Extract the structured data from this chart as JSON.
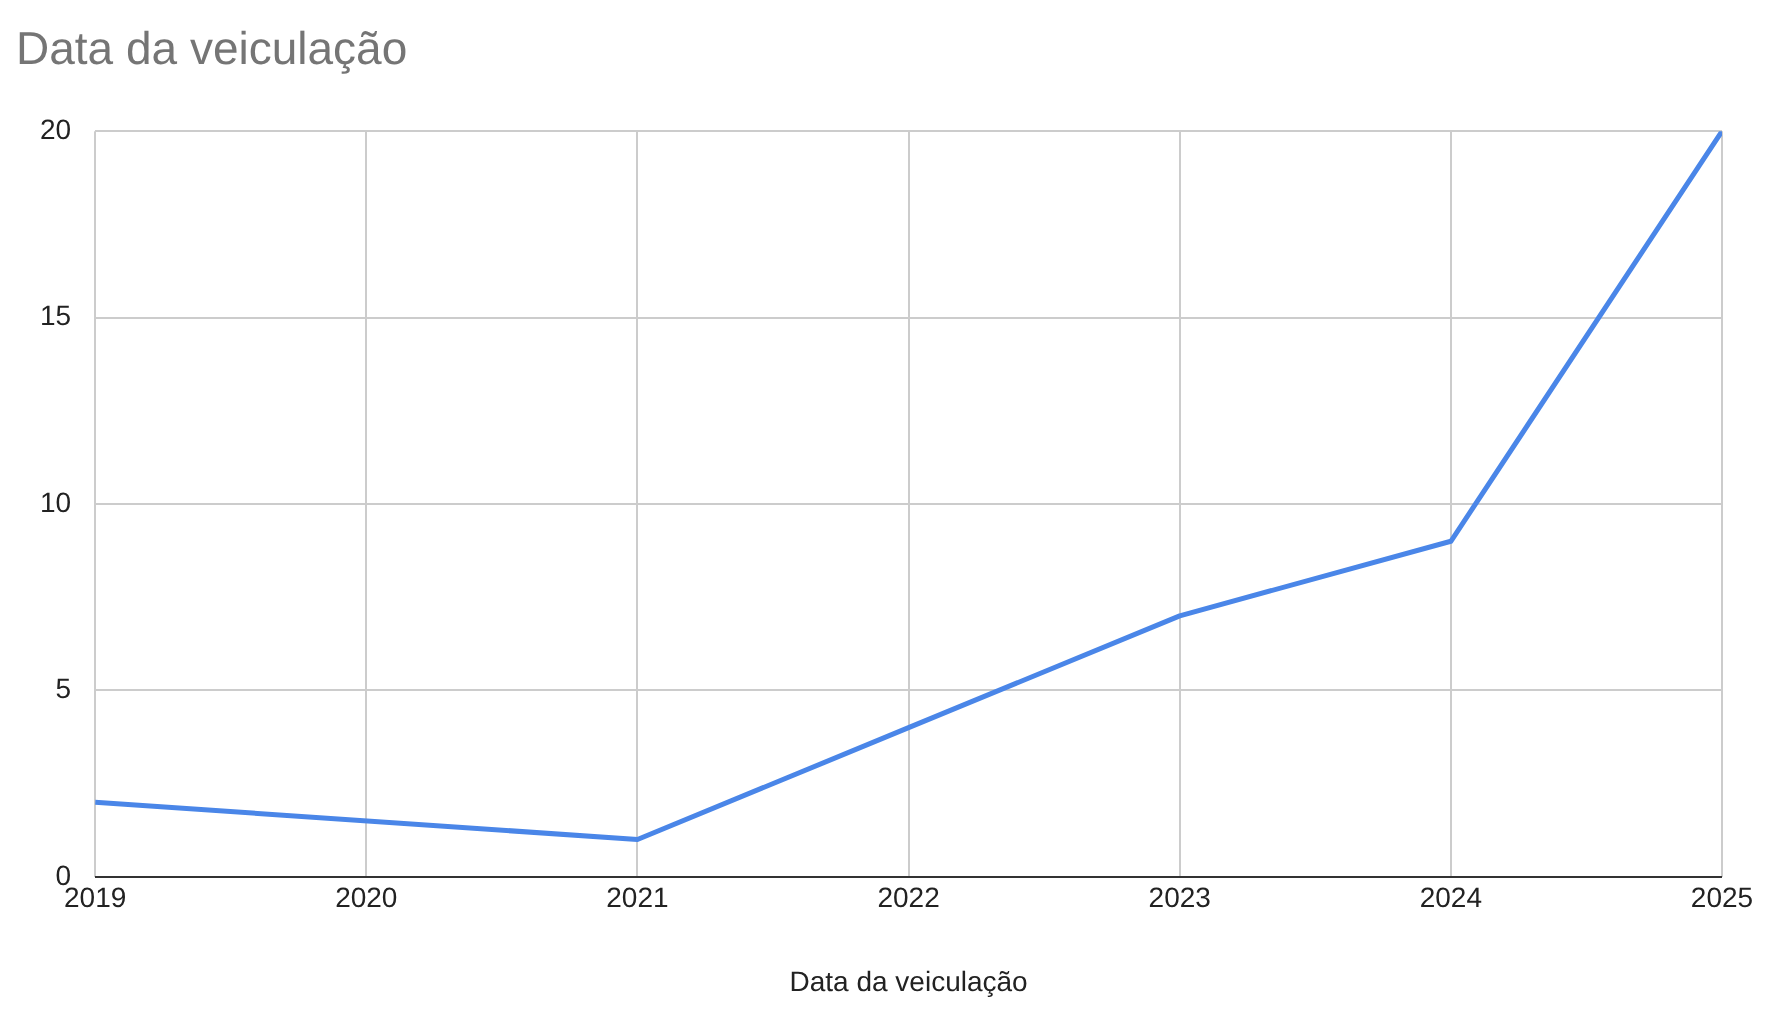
{
  "chart_data": {
    "type": "line",
    "title": "Data da veiculação",
    "xlabel": "Data da veiculação",
    "x": [
      2019,
      2021,
      2022,
      2023,
      2024,
      2025
    ],
    "series": [
      {
        "color": "#4a86e8",
        "values": [
          2,
          1,
          4,
          7,
          9,
          20
        ]
      }
    ],
    "xlim": [
      2019,
      2025
    ],
    "xticks": [
      2019,
      2020,
      2021,
      2022,
      2023,
      2024,
      2025
    ],
    "ylim": [
      0,
      20
    ],
    "yticks": [
      0,
      5,
      10,
      15,
      20
    ],
    "grid": true,
    "legend": false,
    "marker": "none",
    "line_style": "solid"
  }
}
